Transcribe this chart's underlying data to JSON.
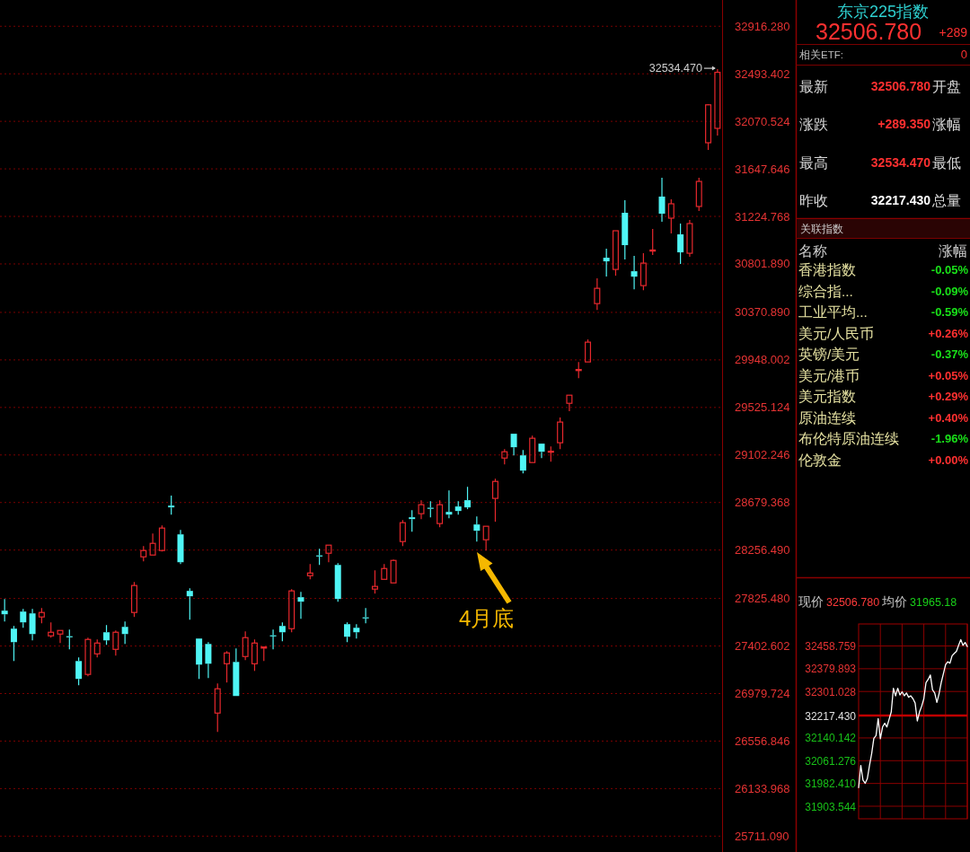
{
  "chart_data": [
    {
      "type": "candlestick",
      "categories": [
        null,
        null,
        null,
        null,
        null,
        null,
        null,
        null,
        null,
        null,
        null,
        null,
        null,
        null,
        null,
        null,
        null,
        null,
        null,
        null,
        null,
        null,
        null,
        null,
        null,
        null,
        null,
        null,
        null,
        null,
        null,
        null,
        null,
        null,
        null,
        null,
        null,
        null,
        null,
        null,
        null,
        null,
        null,
        null,
        null,
        null,
        null,
        null,
        null,
        null,
        null,
        null,
        null,
        null,
        null,
        null,
        null,
        null,
        null,
        null,
        null,
        null,
        null,
        null,
        null,
        null,
        null,
        null,
        null,
        null,
        null,
        null,
        null,
        null,
        null,
        null,
        null,
        null
      ],
      "ohlc": [
        [
          27717,
          27821,
          27621,
          27685
        ],
        [
          27557,
          27581,
          27269,
          27437
        ],
        [
          27709,
          27733,
          27565,
          27613
        ],
        [
          27693,
          27733,
          27453,
          27509
        ],
        [
          27661,
          27741,
          27605,
          27701
        ],
        [
          27493,
          27613,
          27477,
          27525
        ],
        [
          27509,
          27541,
          27429,
          27541
        ],
        [
          27487,
          27549,
          27373,
          27483
        ],
        [
          27269,
          27301,
          27054,
          27110
        ],
        [
          27150,
          27477,
          27134,
          27461
        ],
        [
          27333,
          27461,
          27301,
          27429
        ],
        [
          27525,
          27589,
          27413,
          27453
        ],
        [
          27373,
          27541,
          27317,
          27525
        ],
        [
          27573,
          27621,
          27421,
          27509
        ],
        [
          27701,
          27972,
          27661,
          27941
        ],
        [
          28196,
          28292,
          28156,
          28252
        ],
        [
          28212,
          28404,
          28212,
          28316
        ],
        [
          28252,
          28476,
          28244,
          28452
        ],
        [
          28652,
          28740,
          28572,
          28636
        ],
        [
          28396,
          28436,
          28132,
          28148
        ],
        [
          27893,
          27917,
          27637,
          27845
        ],
        [
          27469,
          27469,
          27110,
          27237
        ],
        [
          27421,
          27437,
          27118,
          27245
        ],
        [
          26806,
          27070,
          26638,
          27022
        ],
        [
          27245,
          27357,
          27078,
          27341
        ],
        [
          27261,
          27381,
          26958,
          26958
        ],
        [
          27309,
          27533,
          27277,
          27477
        ],
        [
          27245,
          27461,
          27181,
          27429
        ],
        [
          27387,
          27397,
          27269,
          27391
        ],
        [
          27495,
          27549,
          27373,
          27491
        ],
        [
          27581,
          27613,
          27445,
          27525
        ],
        [
          27557,
          27909,
          27525,
          27893
        ],
        [
          27837,
          27885,
          27645,
          27797
        ],
        [
          28028,
          28132,
          27996,
          28052
        ],
        [
          28206,
          28268,
          28124,
          28202
        ],
        [
          28228,
          28300,
          28148,
          28300
        ],
        [
          28124,
          28140,
          27797,
          27821
        ],
        [
          27597,
          27613,
          27437,
          27485
        ],
        [
          27565,
          27597,
          27469,
          27525
        ],
        [
          27655,
          27741,
          27605,
          27651
        ],
        [
          27909,
          28076,
          27869,
          27933
        ],
        [
          27996,
          28132,
          27996,
          28092
        ],
        [
          27964,
          28172,
          27964,
          28164
        ],
        [
          28332,
          28524,
          28292,
          28500
        ],
        [
          28548,
          28612,
          28420,
          28532
        ],
        [
          28580,
          28700,
          28532,
          28660
        ],
        [
          28630,
          28692,
          28548,
          28626
        ],
        [
          28492,
          28700,
          28460,
          28660
        ],
        [
          28596,
          28787,
          28540,
          28572
        ],
        [
          28644,
          28692,
          28572,
          28604
        ],
        [
          28700,
          28819,
          28620,
          28636
        ],
        [
          28484,
          28556,
          28332,
          28428
        ],
        [
          28348,
          28468,
          28252,
          28468
        ],
        [
          28716,
          28891,
          28508,
          28867
        ],
        [
          29075,
          29155,
          29019,
          29131
        ],
        [
          29291,
          29291,
          29099,
          29171
        ],
        [
          29099,
          29147,
          28939,
          28963
        ],
        [
          29035,
          29275,
          29035,
          29251
        ],
        [
          29203,
          29203,
          29075,
          29131
        ],
        [
          29129,
          29179,
          29043,
          29133
        ],
        [
          29211,
          29435,
          29155,
          29395
        ],
        [
          29562,
          29634,
          29491,
          29634
        ],
        [
          29856,
          29930,
          29786,
          29860
        ],
        [
          29930,
          30130,
          29930,
          30106
        ],
        [
          30449,
          30673,
          30393,
          30585
        ],
        [
          30857,
          30937,
          30689,
          30825
        ],
        [
          30753,
          31097,
          30697,
          31097
        ],
        [
          31257,
          31369,
          30841,
          30969
        ],
        [
          30737,
          30873,
          30577,
          30689
        ],
        [
          30609,
          30897,
          30569,
          30809
        ],
        [
          30919,
          31113,
          30881,
          30923
        ],
        [
          31401,
          31568,
          31177,
          31249
        ],
        [
          31209,
          31377,
          31073,
          31337
        ],
        [
          31065,
          31161,
          30801,
          30905
        ],
        [
          30897,
          31193,
          30865,
          31161
        ],
        [
          31313,
          31568,
          31273,
          31536
        ],
        [
          31880,
          32224,
          31816,
          32217.43
        ],
        [
          32008,
          32534.47,
          31944,
          32506.78
        ]
      ],
      "ylim": [
        25570,
        33150
      ],
      "yticks": [
        {
          "value": 32916.28,
          "label": "32916.280"
        },
        32493.402,
        32070.524,
        31647.646,
        31224.768,
        {
          "value": 30801.89,
          "label": "30801.890"
        },
        {
          "value": 30370.89,
          "label": "30370.890"
        },
        29948.002,
        29525.124,
        29102.246,
        28679.368,
        {
          "value": 28256.49,
          "label": "28256.490"
        },
        {
          "value": 27825.48,
          "label": "27825.480"
        },
        27402.602,
        26979.724,
        26556.846,
        26133.968,
        {
          "value": 25711.09,
          "label": "25711.090"
        }
      ],
      "grid": "y",
      "annotations": [
        "32534.470",
        "4月底"
      ]
    },
    {
      "type": "other",
      "title": "东京225指数",
      "subtitle": "32506.780",
      "categories": [
        "最新",
        "涨跌",
        "最高",
        "昨收"
      ],
      "value_labels": [
        "32506.780",
        "+289.350",
        "32534.470",
        "32217.430"
      ],
      "colors": [
        "#ff3030",
        "#ff3030",
        "#ff3030",
        "#ffffff"
      ],
      "annotations": [
        "+289",
        "相关ETF:",
        "0",
        "开盘",
        "涨幅",
        "最低",
        "总量"
      ]
    },
    {
      "type": "other",
      "title": "关联指数",
      "xlabel": "名称",
      "ylabel": "涨幅",
      "categories": [
        "香港指数",
        "综合指...",
        "工业平均...",
        "美元/人民币",
        "英镑/美元",
        "美元/港币",
        "美元指数",
        "原油连续",
        "布伦特原油连续",
        "伦敦金"
      ],
      "values": [
        -0.05,
        -0.09,
        -0.59,
        0.26,
        -0.37,
        0.05,
        0.29,
        0.4,
        -1.96,
        0
      ],
      "value_labels": [
        "-0.05%",
        "-0.09%",
        "-0.59%",
        "+0.26%",
        "-0.37%",
        "+0.05%",
        "+0.29%",
        "+0.40%",
        "-1.96%",
        "+0.00%"
      ]
    },
    {
      "type": "line",
      "categories": [
        null,
        null,
        null,
        null,
        null,
        null,
        null,
        null,
        null,
        null,
        null,
        null,
        null,
        null,
        null,
        null,
        null,
        null,
        null,
        null,
        null,
        null,
        null,
        null,
        null,
        null,
        null,
        null,
        null,
        null,
        null,
        null,
        null,
        null,
        null,
        null,
        null,
        null,
        null,
        null,
        null,
        null,
        null,
        null,
        null,
        null,
        null,
        null,
        null,
        null,
        null
      ],
      "series": [
        {
          "color": "#ffffff",
          "values": [
            31968,
            32045,
            31994,
            31983,
            31999,
            32045,
            32086,
            32139,
            32148,
            32207,
            32137,
            32178,
            32191,
            32178,
            32204,
            32230,
            32312,
            32286,
            32312,
            32289,
            32300,
            32286,
            32296,
            32281,
            32286,
            32276,
            32261,
            32199,
            32230,
            32250,
            32276,
            32332,
            32343,
            32358,
            32307,
            32296,
            32263,
            32293,
            32332,
            32363,
            32394,
            32404,
            32399,
            32425,
            32433,
            32440,
            32461,
            32481,
            32461,
            32471,
            32457
          ]
        }
      ],
      "ylim": [
        31860,
        32535
      ],
      "yticks": [
        32458.759,
        32379.893,
        32301.028,
        {
          "value": 32217.43,
          "label": "32217.430"
        },
        32140.142,
        32061.276,
        {
          "value": 31982.41,
          "label": "31982.410"
        },
        31903.544
      ],
      "grid": true,
      "ref_lines": [
        {
          "axis": "y",
          "value": 32217.43
        }
      ],
      "annotations": [
        "现价",
        "32506.780",
        "均价",
        "31965.18"
      ]
    }
  ]
}
